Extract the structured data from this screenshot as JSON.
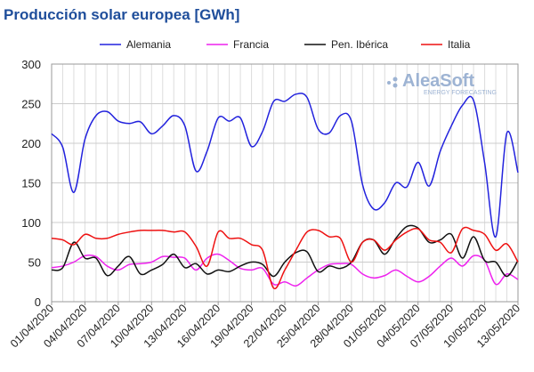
{
  "chart_data": {
    "type": "line",
    "title": "Producción solar europea [GWh]",
    "logo": {
      "name": "AleaSoft",
      "tagline": "ENERGY FORECASTING"
    },
    "categories": [
      "01/04/2020",
      null,
      null,
      "04/04/2020",
      null,
      null,
      "07/04/2020",
      null,
      null,
      "10/04/2020",
      null,
      null,
      "13/04/2020",
      null,
      null,
      "16/04/2020",
      null,
      null,
      "19/04/2020",
      null,
      null,
      "22/04/2020",
      null,
      null,
      "25/04/2020",
      null,
      null,
      "28/04/2020",
      null,
      null,
      "01/05/2020",
      null,
      null,
      "04/05/2020",
      null,
      null,
      "07/05/2020",
      null,
      null,
      "10/05/2020",
      null,
      null,
      "13/05/2020"
    ],
    "series": [
      {
        "name": "Alemania",
        "color": "#2222dd",
        "values": [
          212,
          195,
          138,
          205,
          235,
          240,
          228,
          225,
          227,
          212,
          222,
          235,
          222,
          165,
          190,
          232,
          228,
          232,
          196,
          215,
          253,
          253,
          262,
          258,
          218,
          213,
          235,
          228,
          148,
          117,
          125,
          150,
          145,
          176,
          146,
          190,
          222,
          248,
          254,
          175,
          82,
          213,
          163
        ]
      },
      {
        "name": "Francia",
        "color": "#ee22ee",
        "values": [
          43,
          45,
          50,
          58,
          57,
          45,
          40,
          47,
          48,
          50,
          57,
          56,
          55,
          40,
          55,
          60,
          52,
          42,
          40,
          42,
          22,
          25,
          20,
          30,
          40,
          47,
          48,
          47,
          35,
          30,
          33,
          40,
          32,
          25,
          32,
          45,
          55,
          45,
          58,
          52,
          22,
          35,
          28
        ]
      },
      {
        "name": "Pen. Ibérica",
        "color": "#111111",
        "values": [
          40,
          43,
          75,
          55,
          55,
          33,
          45,
          57,
          35,
          40,
          47,
          60,
          43,
          48,
          35,
          40,
          38,
          45,
          50,
          47,
          32,
          50,
          62,
          63,
          38,
          45,
          42,
          50,
          75,
          78,
          60,
          80,
          95,
          93,
          75,
          78,
          85,
          55,
          82,
          52,
          50,
          32,
          52
        ]
      },
      {
        "name": "Italia",
        "color": "#ee1111",
        "values": [
          80,
          78,
          72,
          85,
          80,
          80,
          85,
          88,
          90,
          90,
          90,
          88,
          88,
          70,
          45,
          88,
          80,
          80,
          72,
          65,
          17,
          40,
          65,
          88,
          90,
          82,
          80,
          50,
          75,
          78,
          65,
          78,
          88,
          92,
          78,
          75,
          62,
          92,
          90,
          85,
          65,
          73,
          50
        ]
      }
    ],
    "ylim": [
      0,
      300
    ],
    "yticks": [
      0,
      50,
      100,
      150,
      200,
      250,
      300
    ],
    "grid": true,
    "legend": "top"
  }
}
